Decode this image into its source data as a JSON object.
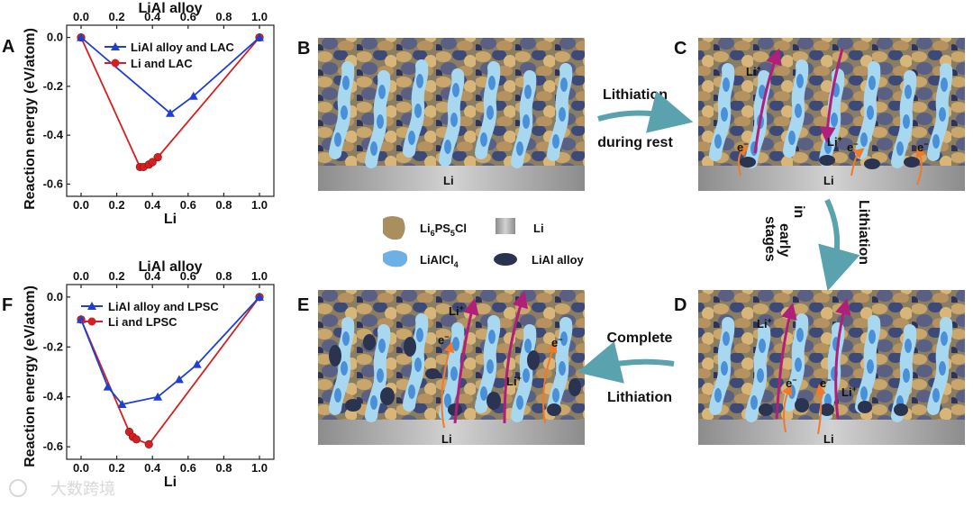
{
  "panels": {
    "A": "A",
    "B": "B",
    "C": "C",
    "D": "D",
    "E": "E",
    "F": "F"
  },
  "colors": {
    "blue": "#1f3fcf",
    "red": "#d42020",
    "arrow": "#5aa2ae",
    "liion": "#b0207a",
    "electron": "#f07a2a"
  },
  "chart_data": [
    {
      "type": "line",
      "panel": "A",
      "title": "",
      "xlabel": "Li",
      "x2label": "LiAl alloy",
      "ylabel": "Reaction energy (eV/atom)",
      "xlim": [
        0.0,
        1.0
      ],
      "ylim": [
        -0.65,
        0.05
      ],
      "xticks": [
        "0.0",
        "0.2",
        "0.4",
        "0.6",
        "0.8",
        "1.0"
      ],
      "x2ticks": [
        "0.0",
        "0.2",
        "0.4",
        "0.6",
        "0.8",
        "1.0"
      ],
      "yticks": [
        "0.0",
        "-0.2",
        "-0.4",
        "-0.6"
      ],
      "series": [
        {
          "name": "LiAl alloy and LAC",
          "marker": "triangle",
          "x": [
            0.0,
            0.5,
            0.63,
            1.0
          ],
          "y": [
            0.0,
            -0.31,
            -0.24,
            0.0
          ]
        },
        {
          "name": "Li and LAC",
          "marker": "circle",
          "x": [
            0.0,
            0.33,
            0.35,
            0.38,
            0.4,
            0.43,
            1.0
          ],
          "y": [
            0.0,
            -0.53,
            -0.53,
            -0.52,
            -0.51,
            -0.49,
            0.0
          ]
        }
      ]
    },
    {
      "type": "line",
      "panel": "F",
      "title": "",
      "xlabel": "Li",
      "x2label": "LiAl alloy",
      "ylabel": "Reaction energy (eV/atom)",
      "xlim": [
        0.0,
        1.0
      ],
      "ylim": [
        -0.65,
        0.05
      ],
      "xticks": [
        "0.0",
        "0.2",
        "0.4",
        "0.6",
        "0.8",
        "1.0"
      ],
      "x2ticks": [
        "0.0",
        "0.2",
        "0.4",
        "0.6",
        "0.8",
        "1.0"
      ],
      "yticks": [
        "0.0",
        "-0.2",
        "-0.4",
        "-0.6"
      ],
      "series": [
        {
          "name": "LiAl alloy and LPSC",
          "marker": "triangle",
          "x": [
            0.0,
            0.15,
            0.23,
            0.43,
            0.55,
            0.65,
            1.0
          ],
          "y": [
            -0.09,
            -0.36,
            -0.43,
            -0.4,
            -0.33,
            -0.27,
            0.0
          ]
        },
        {
          "name": "Li and LPSC",
          "marker": "circle",
          "x": [
            0.0,
            0.27,
            0.29,
            0.31,
            0.38,
            1.0
          ],
          "y": [
            -0.09,
            -0.54,
            -0.56,
            -0.57,
            -0.59,
            0.0
          ]
        }
      ]
    }
  ],
  "legend": {
    "lpsc_base": "Li",
    "lpsc_sub1": "6",
    "lpsc_mid": "PS",
    "lpsc_sub2": "5",
    "lpsc_end": "Cl",
    "li": "Li",
    "lac_base": "LiAlCl",
    "lac_sub": "4",
    "alloy": "LiAl alloy"
  },
  "arrows": {
    "bc_line1": "Lithiation",
    "bc_line2": "during rest",
    "cd_col1_line1": "in",
    "cd_col1_line2": "early",
    "cd_col1_line3": "stages",
    "cd_col2": "Lithiation",
    "de_line1": "Complete",
    "de_line2": "Lithiation"
  },
  "labels": {
    "li": "Li",
    "li_ion": "Li",
    "plus": "+",
    "electron": "e",
    "minus": "−"
  },
  "watermark": "大数跨境"
}
